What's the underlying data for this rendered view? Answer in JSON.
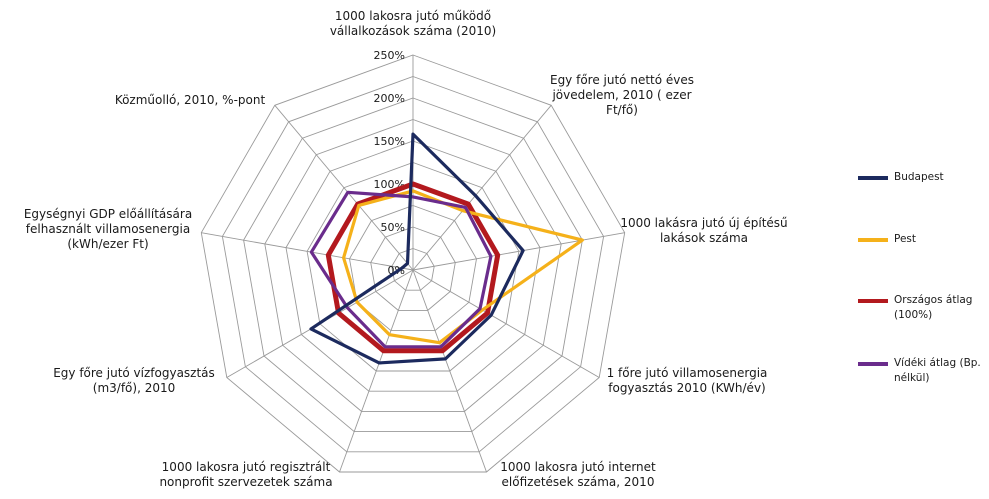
{
  "chart_data": {
    "type": "radar",
    "axes": [
      [
        "1000 lakosra jutó működő",
        "vállalkozások száma (2010)"
      ],
      [
        "Egy főre jutó nettó éves",
        "jövedelem, 2010 ( ezer",
        "Ft/fő)"
      ],
      [
        "1000 lakásra jutó új építésű",
        "lakások száma"
      ],
      [
        "1 főre jutó villamosenergia",
        "fogyasztás 2010 (KWh/év)"
      ],
      [
        "1000 lakosra jutó internet",
        "előfizetések száma, 2010"
      ],
      [
        "1000 lakosra jutó regisztrált",
        "nonprofit szervezetek száma"
      ],
      [
        "Egy főre jutó vízfogyasztás",
        "(m3/fő), 2010"
      ],
      [
        "Egységnyi GDP előállítására",
        "felhasznált villamosenergia",
        "(kWh/ezer Ft)"
      ],
      [
        "Közműolló, 2010, %-pont"
      ]
    ],
    "r_ticks": [
      "0%",
      "50%",
      "100%",
      "150%",
      "200%",
      "250%"
    ],
    "r_range": [
      0,
      250
    ],
    "series": [
      {
        "name": "Budapest",
        "color": "#1c2a5e",
        "values": [
          158,
          113,
          130,
          105,
          110,
          115,
          137,
          13,
          10
        ]
      },
      {
        "name": "Pest",
        "color": "#f5b11a",
        "values": [
          92,
          90,
          200,
          93,
          90,
          80,
          75,
          82,
          98
        ]
      },
      {
        "name": "Országos átlag (100%)",
        "color": "#b3191e",
        "values": [
          100,
          100,
          100,
          100,
          100,
          100,
          100,
          100,
          100
        ]
      },
      {
        "name": "Vídéki átlag (Bp. nélkül)",
        "color": "#6a2c8c",
        "values": [
          85,
          95,
          92,
          90,
          95,
          95,
          88,
          120,
          118
        ]
      }
    ],
    "legend": [
      [
        "Budapest"
      ],
      [
        "Pest"
      ],
      [
        "Országos átlag",
        "(100%)"
      ],
      [
        "Vídéki átlag (Bp.",
        "nélkül)"
      ]
    ],
    "grid": true,
    "legend_position": "right"
  }
}
